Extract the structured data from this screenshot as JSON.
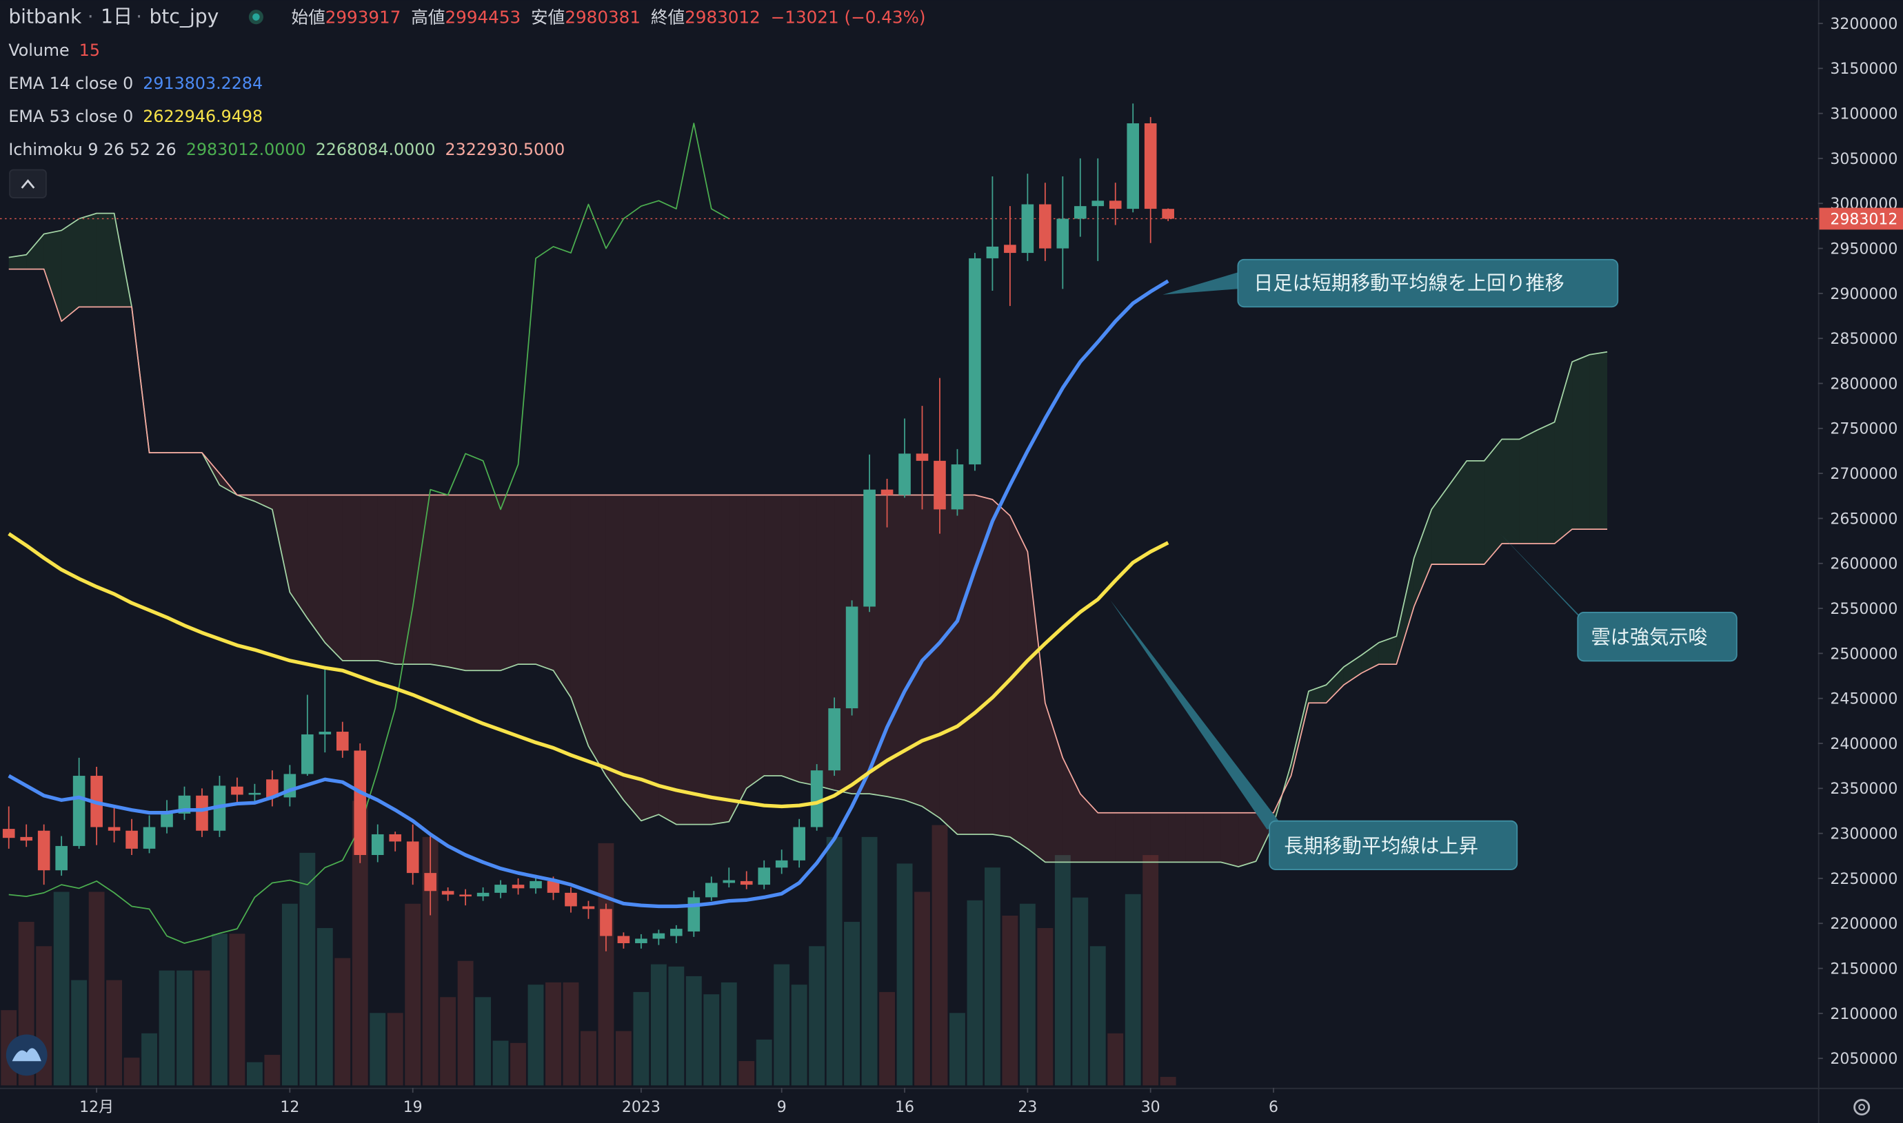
{
  "header": {
    "exchange": "bitbank",
    "interval": "1日",
    "symbol": "btc_jpy",
    "ohlc": [
      {
        "label": "始値",
        "value": "2993917"
      },
      {
        "label": "高値",
        "value": "2994453"
      },
      {
        "label": "安値",
        "value": "2980381"
      },
      {
        "label": "終値",
        "value": "2983012"
      }
    ],
    "change": "−13021 (−0.43%)"
  },
  "annotations": [
    "日足は短期移動平均線を上回り推移",
    "長期移動平均線は上昇",
    "雲は強気示唆"
  ],
  "chart_data": {
    "type": "candlestick",
    "indicators": [
      {
        "name": "Volume",
        "labels": [
          "15"
        ],
        "label_colors": [
          "#ef5350"
        ]
      },
      {
        "name": "EMA 14 close 0",
        "labels": [
          "2913803.2284"
        ],
        "label_colors": [
          "#4c8bf5"
        ]
      },
      {
        "name": "EMA 53 close 0",
        "labels": [
          "2622946.9498"
        ],
        "label_colors": [
          "#f8e34a"
        ]
      },
      {
        "name": "Ichimoku 9 26 52 26",
        "labels": [
          "2983012.0000",
          "2268084.0000",
          "2322930.5000"
        ],
        "label_colors": [
          "#4caf50",
          "#a5d6a7",
          "#f7a9a0"
        ]
      }
    ],
    "xlim": [
      -0.5,
      103
    ],
    "ylim": [
      2020000,
      3226000
    ],
    "volume_ylim": [
      0,
      1918
    ],
    "xticks": [
      {
        "value": 5,
        "label": "12月"
      },
      {
        "value": 16,
        "label": "12"
      },
      {
        "value": 23,
        "label": "19"
      },
      {
        "value": 36,
        "label": "2023"
      },
      {
        "value": 44,
        "label": "9"
      },
      {
        "value": 51,
        "label": "16"
      },
      {
        "value": 58,
        "label": "23"
      },
      {
        "value": 65,
        "label": "30"
      },
      {
        "value": 72,
        "label": "6"
      }
    ],
    "yticks": [
      3200000,
      3150000,
      3100000,
      3050000,
      3000000,
      2950000,
      2900000,
      2850000,
      2800000,
      2750000,
      2700000,
      2650000,
      2600000,
      2550000,
      2500000,
      2450000,
      2400000,
      2350000,
      2300000,
      2250000,
      2200000,
      2150000,
      2100000,
      2050000
    ],
    "last_price": {
      "value": 2983012,
      "label": "2983012"
    },
    "candles": {
      "up_color": "#3fa38f",
      "down_color": "#e0584f",
      "open": [
        2305000,
        2296000,
        2303000,
        2259000,
        2286000,
        2364000,
        2307000,
        2303000,
        2283000,
        2307000,
        2322000,
        2342000,
        2303000,
        2352000,
        2343000,
        2360000,
        2340000,
        2366000,
        2410000,
        2413000,
        2392000,
        2276000,
        2299000,
        2291000,
        2256000,
        2236000,
        2232000,
        2230000,
        2234000,
        2243000,
        2239000,
        2247000,
        2234000,
        2219000,
        2216000,
        2186000,
        2178000,
        2183000,
        2186000,
        2191000,
        2229000,
        2245000,
        2247000,
        2243000,
        2262000,
        2270000,
        2307000,
        2370000,
        2439000,
        2552000,
        2682000,
        2676000,
        2722000,
        2714000,
        2660000,
        2710000,
        2939000,
        2954000,
        2945000,
        2999000,
        2950000,
        2983000,
        2997000,
        3003000,
        2994000,
        3089000,
        2993917
      ],
      "high": [
        2330000,
        2310000,
        2310000,
        2297000,
        2384000,
        2374000,
        2330000,
        2316000,
        2320000,
        2337000,
        2352000,
        2350000,
        2364000,
        2362000,
        2355000,
        2370000,
        2376000,
        2454000,
        2482000,
        2424000,
        2400000,
        2310000,
        2302000,
        2310000,
        2297000,
        2240000,
        2238000,
        2240000,
        2248000,
        2250000,
        2254000,
        2252000,
        2240000,
        2225000,
        2222000,
        2190000,
        2188000,
        2193000,
        2198000,
        2236000,
        2252000,
        2262000,
        2258000,
        2270000,
        2282000,
        2316000,
        2377000,
        2451000,
        2559000,
        2721000,
        2694000,
        2761000,
        2775000,
        2806000,
        2727000,
        2945000,
        3030000,
        2997000,
        3033000,
        3023000,
        3030000,
        3050000,
        3050000,
        3023000,
        3111000,
        3096000,
        2994453
      ],
      "low": [
        2283000,
        2285000,
        2243000,
        2253000,
        2283000,
        2287000,
        2290000,
        2276000,
        2278000,
        2300000,
        2315000,
        2296000,
        2296000,
        2335000,
        2335000,
        2330000,
        2330000,
        2364000,
        2390000,
        2384000,
        2267000,
        2268000,
        2280000,
        2243000,
        2209000,
        2225000,
        2220000,
        2225000,
        2228000,
        2232000,
        2233000,
        2226000,
        2212000,
        2205000,
        2169000,
        2172000,
        2172000,
        2176000,
        2178000,
        2185000,
        2225000,
        2240000,
        2238000,
        2238000,
        2255000,
        2262000,
        2303000,
        2364000,
        2431000,
        2546000,
        2640000,
        2673000,
        2660000,
        2633000,
        2653000,
        2703000,
        2903000,
        2886000,
        2936000,
        2936000,
        2905000,
        2963000,
        2936000,
        2976000,
        2990000,
        2956000,
        2980381
      ],
      "close": [
        2295000,
        2292000,
        2259000,
        2286000,
        2364000,
        2307000,
        2303000,
        2283000,
        2307000,
        2322000,
        2342000,
        2303000,
        2353000,
        2343000,
        2345000,
        2340000,
        2366000,
        2410000,
        2413000,
        2392000,
        2276000,
        2299000,
        2291000,
        2256000,
        2236000,
        2232000,
        2230000,
        2234000,
        2243000,
        2239000,
        2247000,
        2234000,
        2219000,
        2216000,
        2186000,
        2178000,
        2183000,
        2189000,
        2194000,
        2229000,
        2245000,
        2248000,
        2243000,
        2262000,
        2270000,
        2307000,
        2370000,
        2439000,
        2552000,
        2682000,
        2676000,
        2722000,
        2714000,
        2660000,
        2710000,
        2939000,
        2952000,
        2945000,
        2999000,
        2950000,
        2983000,
        2997000,
        3003000,
        2994000,
        3089000,
        2994000,
        2983012
      ]
    },
    "volume": {
      "up_color": "#1d3b3e",
      "down_color": "#3a2329",
      "values": [
        133,
        289,
        246,
        342,
        186,
        342,
        186,
        49,
        92,
        203,
        203,
        203,
        268,
        268,
        41,
        54,
        321,
        411,
        278,
        225,
        503,
        128,
        128,
        321,
        439,
        156,
        220,
        156,
        79,
        75,
        178,
        182,
        182,
        96,
        428,
        96,
        165,
        214,
        210,
        193,
        161,
        182,
        43,
        81,
        214,
        178,
        246,
        439,
        289,
        439,
        165,
        392,
        342,
        460,
        128,
        327,
        385,
        300,
        321,
        278,
        407,
        332,
        246,
        92,
        338,
        407,
        15
      ]
    },
    "ema": [
      {
        "color": "#4c8bf5",
        "values": [
          2364000,
          2353000,
          2342000,
          2337000,
          2340000,
          2334000,
          2330000,
          2326000,
          2323000,
          2323000,
          2326000,
          2326000,
          2330000,
          2333000,
          2334000,
          2340000,
          2348000,
          2354000,
          2360000,
          2357000,
          2346000,
          2337000,
          2326000,
          2314000,
          2299000,
          2286000,
          2276000,
          2268000,
          2261000,
          2256000,
          2252000,
          2248000,
          2243000,
          2236000,
          2229000,
          2222000,
          2220000,
          2219000,
          2219000,
          2220000,
          2222000,
          2225000,
          2226000,
          2229000,
          2233000,
          2245000,
          2267000,
          2294000,
          2330000,
          2370000,
          2418000,
          2458000,
          2492000,
          2512000,
          2536000,
          2593000,
          2647000,
          2687000,
          2725000,
          2761000,
          2795000,
          2824000,
          2846000,
          2869000,
          2889000,
          2902000,
          2913803.2284
        ]
      },
      {
        "color": "#f8e34a",
        "values": [
          2633000,
          2620000,
          2606000,
          2593000,
          2583000,
          2574000,
          2566000,
          2556000,
          2548000,
          2540000,
          2531000,
          2523000,
          2516000,
          2509000,
          2504000,
          2498000,
          2492000,
          2488000,
          2484000,
          2481000,
          2474000,
          2467000,
          2461000,
          2454000,
          2446000,
          2438000,
          2430000,
          2422000,
          2415000,
          2408000,
          2401000,
          2395000,
          2387000,
          2380000,
          2373000,
          2365000,
          2360000,
          2353000,
          2348000,
          2344000,
          2340000,
          2337000,
          2334000,
          2331000,
          2330000,
          2331000,
          2334000,
          2342000,
          2354000,
          2368000,
          2381000,
          2392000,
          2403000,
          2410000,
          2419000,
          2434000,
          2451000,
          2471000,
          2492000,
          2511000,
          2529000,
          2546000,
          2560000,
          2581000,
          2601000,
          2613000,
          2622946.9498
        ]
      }
    ],
    "ichimoku": {
      "cloud_up_color": "rgba(76,175,80,0.13)",
      "cloud_down_color": "rgba(239,83,80,0.13)",
      "lagging": {
        "color": "#4caf50",
        "values": [
          2232000,
          2230000,
          2234000,
          2243000,
          2239000,
          2247000,
          2234000,
          2219000,
          2216000,
          2186000,
          2178000,
          2183000,
          2189000,
          2194000,
          2229000,
          2245000,
          2248000,
          2243000,
          2262000,
          2270000,
          2307000,
          2370000,
          2439000,
          2552000,
          2682000,
          2676000,
          2722000,
          2714000,
          2660000,
          2710000,
          2939000,
          2952000,
          2945000,
          2999000,
          2950000,
          2983000,
          2997000,
          3003000,
          2994000,
          3089000,
          2994000,
          2983012
        ]
      },
      "lead_a": {
        "color": "#a5d6a7",
        "values": [
          2940000,
          2943000,
          2966000,
          2970000,
          2983000,
          2989000,
          2989000,
          2885000,
          2723000,
          2723000,
          2723000,
          2723000,
          2687000,
          2676000,
          2669000,
          2660000,
          2568000,
          2539000,
          2512000,
          2492000,
          2492000,
          2492000,
          2488000,
          2488000,
          2488000,
          2485000,
          2481000,
          2481000,
          2481000,
          2488000,
          2488000,
          2481000,
          2451000,
          2397000,
          2364000,
          2337000,
          2314000,
          2321000,
          2310000,
          2310000,
          2310000,
          2313000,
          2350000,
          2364000,
          2364000,
          2357000,
          2353000,
          2348000,
          2344000,
          2344000,
          2341000,
          2337000,
          2330000,
          2317000,
          2299000,
          2299000,
          2299000,
          2296000,
          2283000,
          2268084,
          2268084,
          2268084,
          2268084,
          2268084,
          2268084,
          2268084,
          2268084,
          2268084,
          2268084,
          2268084,
          2263000,
          2269000,
          2310000,
          2377000,
          2458000,
          2465000,
          2485000,
          2498000,
          2512000,
          2519000,
          2606000,
          2660000,
          2687000,
          2714000,
          2714000,
          2738000,
          2738000,
          2748000,
          2757000,
          2824000,
          2832000,
          2835000
        ]
      },
      "lead_b": {
        "color": "#f7a9a0",
        "values": [
          2927000,
          2927000,
          2927000,
          2869000,
          2885000,
          2885000,
          2885000,
          2885000,
          2723000,
          2723000,
          2723000,
          2723000,
          2700000,
          2676000,
          2676000,
          2676000,
          2676000,
          2676000,
          2676000,
          2676000,
          2676000,
          2676000,
          2676000,
          2676000,
          2676000,
          2676000,
          2676000,
          2676000,
          2676000,
          2676000,
          2676000,
          2676000,
          2676000,
          2676000,
          2676000,
          2676000,
          2676000,
          2676000,
          2676000,
          2676000,
          2676000,
          2676000,
          2676000,
          2676000,
          2676000,
          2676000,
          2676000,
          2676000,
          2676000,
          2676000,
          2676000,
          2676000,
          2676000,
          2676000,
          2676000,
          2676000,
          2671000,
          2653000,
          2613000,
          2445000,
          2384000,
          2344000,
          2322930.5,
          2322930.5,
          2322930.5,
          2322930.5,
          2322930.5,
          2322930.5,
          2322930.5,
          2322930.5,
          2322930.5,
          2322930.5,
          2322930.5,
          2364000,
          2445000,
          2445000,
          2465000,
          2478000,
          2488000,
          2488000,
          2552000,
          2599000,
          2599000,
          2599000,
          2599000,
          2622000,
          2622000,
          2622000,
          2622000,
          2638000,
          2638000,
          2638000
        ]
      }
    }
  }
}
